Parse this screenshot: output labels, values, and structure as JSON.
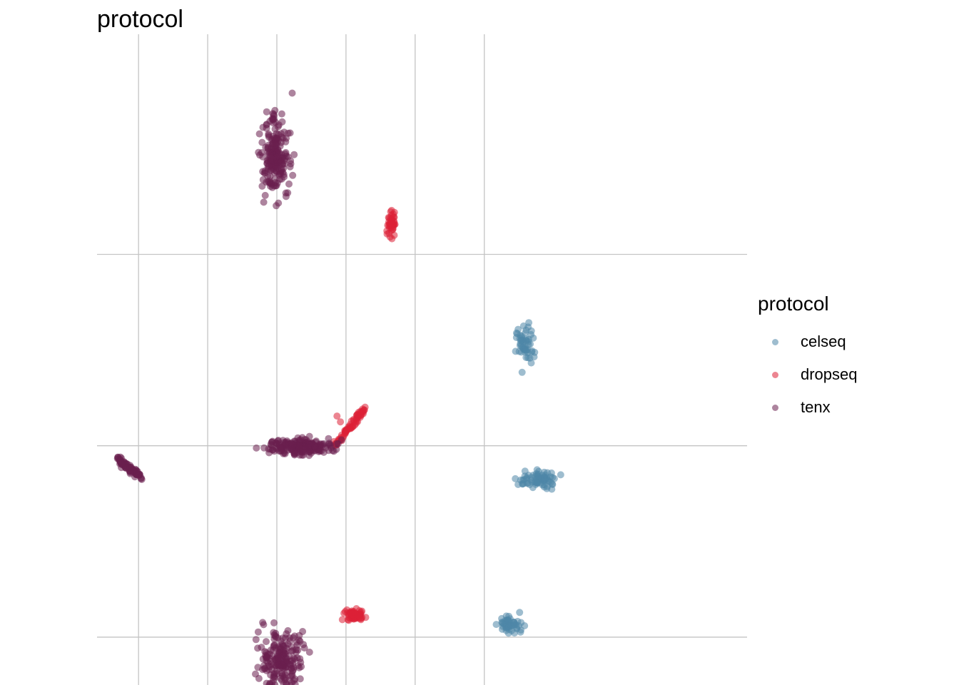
{
  "chart_data": {
    "type": "scatter",
    "title": "protocol",
    "xlabel": "",
    "ylabel": "",
    "xlim": [
      -2.6,
      6.8
    ],
    "ylim": [
      -2.5,
      4.3
    ],
    "x_gridlines": [
      -2,
      -1,
      0,
      1,
      2,
      3
    ],
    "y_gridlines": [
      -2,
      0,
      2
    ],
    "grid": true,
    "legend": {
      "title": "protocol",
      "placement": "right"
    },
    "series": [
      {
        "name": "celseq",
        "color": "#4E86A7",
        "clusters": [
          {
            "cx": 3.59,
            "cy": 1.07,
            "sx": 0.06,
            "sy": 0.1,
            "n": 55
          },
          {
            "cx": 3.79,
            "cy": -0.35,
            "sx": 0.14,
            "sy": 0.04,
            "n": 75
          },
          {
            "cx": 3.36,
            "cy": -1.87,
            "sx": 0.08,
            "sy": 0.05,
            "n": 55
          }
        ]
      },
      {
        "name": "dropseq",
        "color": "#DC2136",
        "clusters": [
          {
            "cx": 1.66,
            "cy": 2.31,
            "sx": 0.03,
            "sy": 0.06,
            "n": 45
          },
          {
            "cx": 1.13,
            "cy": -1.77,
            "sx": 0.07,
            "sy": 0.03,
            "n": 60
          }
        ],
        "lines": [
          {
            "from": [
              0.83,
              0.0
            ],
            "to": [
              1.27,
              0.38
            ],
            "n": 70
          }
        ],
        "points": [
          [
            0.87,
            0.31
          ],
          [
            0.92,
            0.25
          ]
        ]
      },
      {
        "name": "tenx",
        "color": "#6A1F4E",
        "clusters": [
          {
            "cx": -0.02,
            "cy": 3.05,
            "sx": 0.1,
            "sy": 0.22,
            "n": 200
          },
          {
            "cx": 0.33,
            "cy": -0.01,
            "sx": 0.24,
            "sy": 0.04,
            "n": 200
          },
          {
            "cx": 0.07,
            "cy": -2.23,
            "sx": 0.16,
            "sy": 0.16,
            "n": 200
          }
        ],
        "lines": [
          {
            "from": [
              -2.3,
              -0.14
            ],
            "to": [
              -1.96,
              -0.33
            ],
            "n": 80
          }
        ]
      }
    ]
  }
}
